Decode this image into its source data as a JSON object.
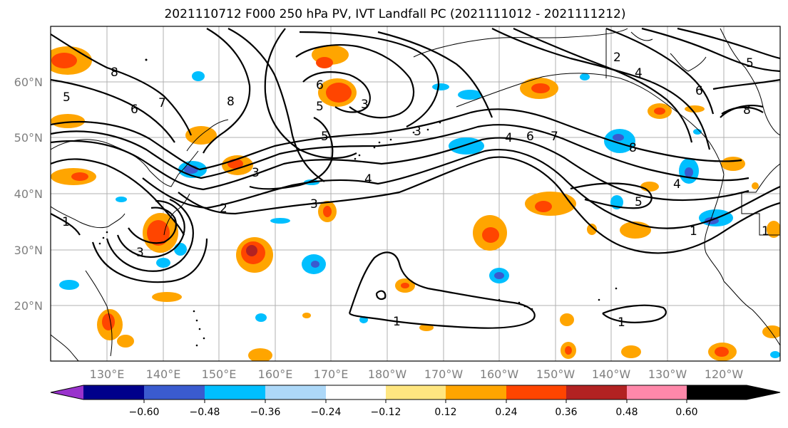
{
  "title": "2021110712 F000 250 hPa PV, IVT Landfall PC (2021111012 - 2021111212)",
  "lat_labels": [
    "60°N",
    "50°N",
    "40°N",
    "30°N",
    "20°N"
  ],
  "lon_labels": [
    "130°E",
    "140°E",
    "150°E",
    "160°E",
    "170°E",
    "180°W",
    "170°W",
    "160°W",
    "150°W",
    "140°W",
    "130°W",
    "120°W"
  ],
  "colorbar": {
    "colors": [
      "#9932cc",
      "#00008b",
      "#3a5bcf",
      "#00bfff",
      "#add8f8",
      "#ffffff",
      "#ffe680",
      "#ffa500",
      "#ff4500",
      "#b22222",
      "#ff88aa"
    ],
    "ticks": [
      "−0.60",
      "−0.48",
      "−0.36",
      "−0.24",
      "−0.12",
      "0.12",
      "0.24",
      "0.36",
      "0.48",
      "0.60"
    ]
  },
  "contour_labels": [
    "8",
    "5",
    "6",
    "7",
    "8",
    "1",
    "1",
    "2",
    "3",
    "4",
    "5",
    "5",
    "6",
    "3",
    "3",
    "2",
    "4",
    "6",
    "8",
    "5",
    "6",
    "7",
    "8",
    "4",
    "5",
    "1",
    "1",
    "1",
    "3",
    "4",
    "3"
  ]
}
